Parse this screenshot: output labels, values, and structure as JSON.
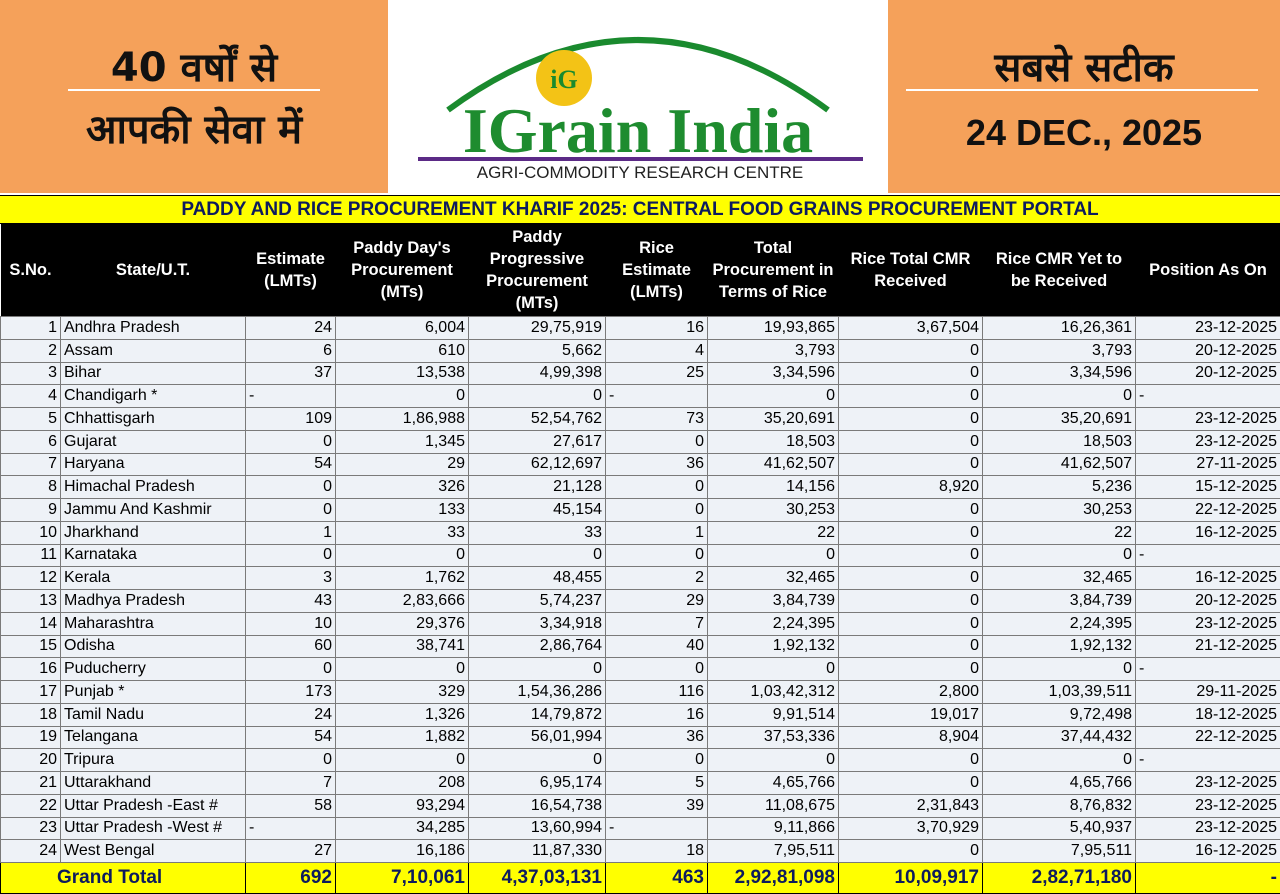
{
  "header": {
    "left_lines": [
      "40 वर्षों से",
      "आपकी सेवा में"
    ],
    "logo_badge": "iG",
    "logo_title": "IGrain India",
    "logo_subtitle": "AGRI-COMMODITY RESEARCH CENTRE",
    "right_title": "सबसे सटीक",
    "date": "24 DEC., 2025"
  },
  "table": {
    "title": "PADDY AND RICE PROCUREMENT KHARIF 2025: CENTRAL FOOD GRAINS PROCUREMENT PORTAL",
    "columns": [
      "S.No.",
      "State/U.T.",
      "Estimate (LMTs)",
      "Paddy Day's Procurement (MTs)",
      "Paddy Progressive Procurement (MTs)",
      "Rice Estimate (LMTs)",
      "Total Procurement in Terms of Rice",
      "Rice Total CMR Received",
      "Rice CMR Yet to be Received",
      "Position As On"
    ],
    "rows": [
      [
        "1",
        "Andhra Pradesh",
        "24",
        "6,004",
        "29,75,919",
        "16",
        "19,93,865",
        "3,67,504",
        "16,26,361",
        "23-12-2025"
      ],
      [
        "2",
        "Assam",
        "6",
        "610",
        "5,662",
        "4",
        "3,793",
        "0",
        "3,793",
        "20-12-2025"
      ],
      [
        "3",
        "Bihar",
        "37",
        "13,538",
        "4,99,398",
        "25",
        "3,34,596",
        "0",
        "3,34,596",
        "20-12-2025"
      ],
      [
        "4",
        "Chandigarh *",
        "-",
        "0",
        "0",
        "-",
        "0",
        "0",
        "0",
        "-"
      ],
      [
        "5",
        "Chhattisgarh",
        "109",
        "1,86,988",
        "52,54,762",
        "73",
        "35,20,691",
        "0",
        "35,20,691",
        "23-12-2025"
      ],
      [
        "6",
        "Gujarat",
        "0",
        "1,345",
        "27,617",
        "0",
        "18,503",
        "0",
        "18,503",
        "23-12-2025"
      ],
      [
        "7",
        "Haryana",
        "54",
        "29",
        "62,12,697",
        "36",
        "41,62,507",
        "0",
        "41,62,507",
        "27-11-2025"
      ],
      [
        "8",
        "Himachal Pradesh",
        "0",
        "326",
        "21,128",
        "0",
        "14,156",
        "8,920",
        "5,236",
        "15-12-2025"
      ],
      [
        "9",
        "Jammu And Kashmir",
        "0",
        "133",
        "45,154",
        "0",
        "30,253",
        "0",
        "30,253",
        "22-12-2025"
      ],
      [
        "10",
        "Jharkhand",
        "1",
        "33",
        "33",
        "1",
        "22",
        "0",
        "22",
        "16-12-2025"
      ],
      [
        "11",
        "Karnataka",
        "0",
        "0",
        "0",
        "0",
        "0",
        "0",
        "0",
        "-"
      ],
      [
        "12",
        "Kerala",
        "3",
        "1,762",
        "48,455",
        "2",
        "32,465",
        "0",
        "32,465",
        "16-12-2025"
      ],
      [
        "13",
        "Madhya Pradesh",
        "43",
        "2,83,666",
        "5,74,237",
        "29",
        "3,84,739",
        "0",
        "3,84,739",
        "20-12-2025"
      ],
      [
        "14",
        "Maharashtra",
        "10",
        "29,376",
        "3,34,918",
        "7",
        "2,24,395",
        "0",
        "2,24,395",
        "23-12-2025"
      ],
      [
        "15",
        "Odisha",
        "60",
        "38,741",
        "2,86,764",
        "40",
        "1,92,132",
        "0",
        "1,92,132",
        "21-12-2025"
      ],
      [
        "16",
        "Puducherry",
        "0",
        "0",
        "0",
        "0",
        "0",
        "0",
        "0",
        "-"
      ],
      [
        "17",
        "Punjab *",
        "173",
        "329",
        "1,54,36,286",
        "116",
        "1,03,42,312",
        "2,800",
        "1,03,39,511",
        "29-11-2025"
      ],
      [
        "18",
        "Tamil Nadu",
        "24",
        "1,326",
        "14,79,872",
        "16",
        "9,91,514",
        "19,017",
        "9,72,498",
        "18-12-2025"
      ],
      [
        "19",
        "Telangana",
        "54",
        "1,882",
        "56,01,994",
        "36",
        "37,53,336",
        "8,904",
        "37,44,432",
        "22-12-2025"
      ],
      [
        "20",
        "Tripura",
        "0",
        "0",
        "0",
        "0",
        "0",
        "0",
        "0",
        "-"
      ],
      [
        "21",
        "Uttarakhand",
        "7",
        "208",
        "6,95,174",
        "5",
        "4,65,766",
        "0",
        "4,65,766",
        "23-12-2025"
      ],
      [
        "22",
        "Uttar Pradesh -East #",
        "58",
        "93,294",
        "16,54,738",
        "39",
        "11,08,675",
        "2,31,843",
        "8,76,832",
        "23-12-2025"
      ],
      [
        "23",
        "Uttar Pradesh -West #",
        "-",
        "34,285",
        "13,60,994",
        "-",
        "9,11,866",
        "3,70,929",
        "5,40,937",
        "23-12-2025"
      ],
      [
        "24",
        "West Bengal",
        "27",
        "16,186",
        "11,87,330",
        "18",
        "7,95,511",
        "0",
        "7,95,511",
        "16-12-2025"
      ]
    ],
    "total": [
      "Grand Total",
      "692",
      "7,10,061",
      "4,37,03,131",
      "463",
      "2,92,81,098",
      "10,09,917",
      "2,82,71,180",
      "-"
    ]
  }
}
